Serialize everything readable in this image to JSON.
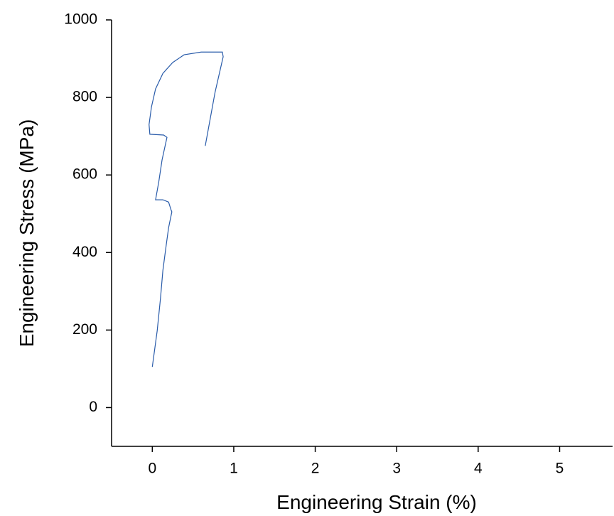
{
  "chart_data": {
    "type": "line",
    "x_label": "Engineering Strain (%)",
    "y_label": "Engineering Stress (MPa)",
    "xlim": [
      -0.5,
      5.65
    ],
    "xticks": [
      0,
      1,
      2,
      3,
      4,
      5
    ],
    "ylim": [
      -100,
      1000
    ],
    "yticks": [
      0,
      200,
      400,
      600,
      800,
      1000
    ],
    "series": [
      {
        "color": "#2a5caa",
        "x": [
          0,
          0.06,
          0.1,
          0.13,
          0.17,
          0.2,
          0.24,
          0.23,
          0.2,
          0.13,
          0.04,
          0.08,
          0.12,
          0.18,
          0.14,
          -0.03,
          -0.04,
          -0.01,
          0.04,
          0.13,
          0.25,
          0.39,
          0.6,
          0.86,
          0.87,
          0.77,
          0.65
        ],
        "values": [
          105,
          198,
          281,
          354,
          418,
          464,
          505,
          510,
          530,
          536,
          536,
          583,
          639,
          697,
          703,
          705,
          730,
          776,
          822,
          862,
          890,
          910,
          917,
          917,
          905,
          813,
          675
        ]
      }
    ]
  }
}
